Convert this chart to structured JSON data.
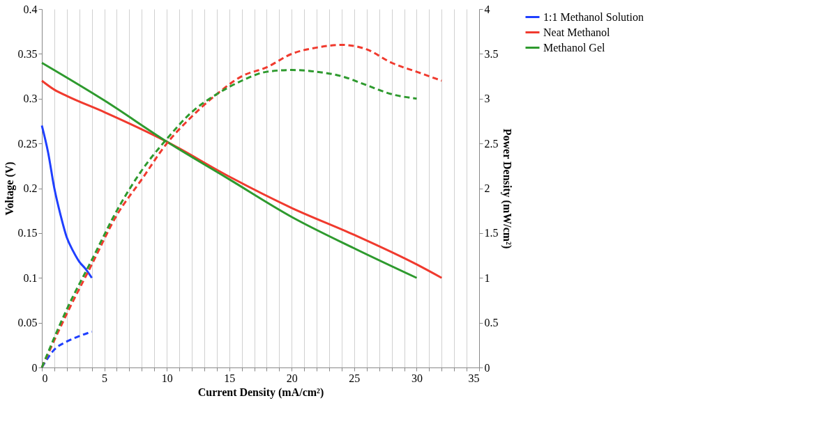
{
  "chart_data": {
    "type": "line",
    "xlabel": "Current Density (mA/cm²)",
    "ylabel": "Voltage (V)",
    "y2label": "Power Density (mW/cm²)",
    "xlim": [
      0,
      35
    ],
    "ylim": [
      0,
      0.4
    ],
    "y2lim": [
      0,
      4
    ],
    "xticks": [
      0,
      {
        "value": 1,
        "label": null
      },
      {
        "value": 2,
        "label": null
      },
      {
        "value": 3,
        "label": null
      },
      {
        "value": 4,
        "label": null
      },
      5,
      {
        "value": 6,
        "label": null
      },
      {
        "value": 7,
        "label": null
      },
      {
        "value": 8,
        "label": null
      },
      {
        "value": 9,
        "label": null
      },
      10,
      {
        "value": 11,
        "label": null
      },
      {
        "value": 12,
        "label": null
      },
      {
        "value": 13,
        "label": null
      },
      {
        "value": 14,
        "label": null
      },
      15,
      {
        "value": 16,
        "label": null
      },
      {
        "value": 17,
        "label": null
      },
      {
        "value": 18,
        "label": null
      },
      {
        "value": 19,
        "label": null
      },
      20,
      {
        "value": 21,
        "label": null
      },
      {
        "value": 22,
        "label": null
      },
      {
        "value": 23,
        "label": null
      },
      {
        "value": 24,
        "label": null
      },
      25,
      {
        "value": 26,
        "label": null
      },
      {
        "value": 27,
        "label": null
      },
      {
        "value": 28,
        "label": null
      },
      {
        "value": 29,
        "label": null
      },
      30,
      {
        "value": 31,
        "label": null
      },
      {
        "value": 32,
        "label": null
      },
      {
        "value": 33,
        "label": null
      },
      {
        "value": 34,
        "label": null
      },
      35
    ],
    "yticks": [
      0,
      0.05,
      0.1,
      0.15,
      0.2,
      0.25,
      0.3,
      0.35,
      0.4
    ],
    "y2ticks": [
      0,
      0.5,
      1,
      1.5,
      2,
      2.5,
      3,
      3.5,
      4
    ],
    "grid": "x",
    "legend": "right",
    "marker": "none",
    "series": [
      {
        "name": "1:1 Methanol Solution",
        "color": "#1f3fff",
        "line_style": "solid",
        "x": [
          0,
          0.5,
          1,
          1.5,
          2,
          2.5,
          3,
          3.5,
          4
        ],
        "values": [
          0.27,
          0.24,
          0.2,
          0.17,
          0.145,
          0.13,
          0.118,
          0.11,
          0.1
        ]
      },
      {
        "name": "Neat Methanol",
        "color": "#f03a2e",
        "line_style": "solid",
        "x": [
          0,
          1,
          2,
          5,
          10,
          15,
          20,
          25,
          30,
          32
        ],
        "values": [
          0.32,
          0.31,
          0.303,
          0.285,
          0.252,
          0.213,
          0.178,
          0.148,
          0.115,
          0.1
        ]
      },
      {
        "name": "Methanol Gel",
        "color": "#2e9a2e",
        "line_style": "solid",
        "x": [
          0,
          5,
          10,
          15,
          20,
          25,
          30
        ],
        "values": [
          0.34,
          0.298,
          0.252,
          0.21,
          0.168,
          0.133,
          0.1
        ]
      },
      {
        "color": "#1f3fff",
        "line_style": "dashed",
        "axis": "y2",
        "x": [
          0,
          1,
          2,
          3,
          4
        ],
        "values": [
          0,
          0.2,
          0.29,
          0.35,
          0.4
        ]
      },
      {
        "color": "#f03a2e",
        "line_style": "dashed",
        "axis": "y2",
        "x": [
          0,
          2,
          4,
          6,
          8,
          10,
          12,
          14,
          16,
          18,
          20,
          22,
          24,
          26,
          28,
          30,
          32
        ],
        "values": [
          0,
          0.6,
          1.15,
          1.7,
          2.1,
          2.5,
          2.8,
          3.05,
          3.25,
          3.35,
          3.5,
          3.57,
          3.6,
          3.55,
          3.4,
          3.3,
          3.2
        ]
      },
      {
        "color": "#2e9a2e",
        "line_style": "dashed",
        "axis": "y2",
        "x": [
          0,
          2,
          4,
          6,
          8,
          10,
          12,
          14,
          16,
          18,
          20,
          22,
          24,
          26,
          28,
          30
        ],
        "values": [
          0,
          0.65,
          1.2,
          1.75,
          2.2,
          2.55,
          2.85,
          3.05,
          3.2,
          3.3,
          3.32,
          3.3,
          3.25,
          3.15,
          3.05,
          3.0
        ]
      }
    ]
  }
}
